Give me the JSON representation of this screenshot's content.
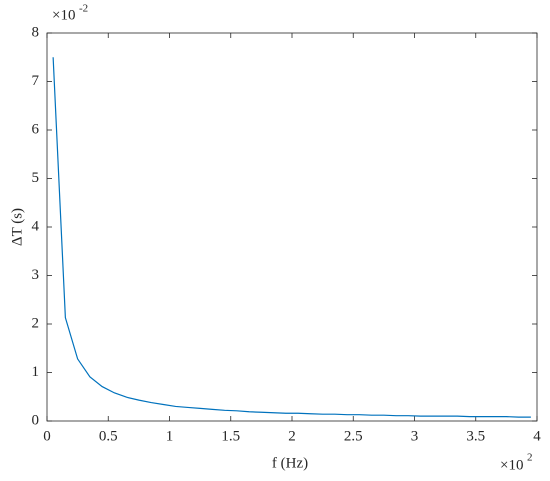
{
  "chart_data": {
    "type": "line",
    "xlabel": "f (Hz)",
    "ylabel": "ΔT (s)",
    "x_multiplier": "×10",
    "x_exponent": "2",
    "y_multiplier": "×10",
    "y_exponent": "-2",
    "x": [
      0.05,
      0.15,
      0.25,
      0.35,
      0.45,
      0.55,
      0.65,
      0.75,
      0.85,
      0.95,
      1.05,
      1.15,
      1.25,
      1.35,
      1.45,
      1.55,
      1.65,
      1.75,
      1.85,
      1.95,
      2.05,
      2.15,
      2.25,
      2.35,
      2.45,
      2.55,
      2.65,
      2.75,
      2.85,
      2.95,
      3.05,
      3.15,
      3.25,
      3.35,
      3.45,
      3.55,
      3.65,
      3.75,
      3.85,
      3.95
    ],
    "series": [
      {
        "name": "ΔT",
        "color": "#0072bd",
        "values": [
          7.5,
          2.13,
          1.28,
          0.91,
          0.71,
          0.58,
          0.49,
          0.43,
          0.38,
          0.34,
          0.3,
          0.28,
          0.26,
          0.24,
          0.22,
          0.21,
          0.19,
          0.18,
          0.17,
          0.16,
          0.16,
          0.15,
          0.14,
          0.14,
          0.13,
          0.13,
          0.12,
          0.12,
          0.11,
          0.11,
          0.1,
          0.1,
          0.1,
          0.1,
          0.09,
          0.09,
          0.09,
          0.09,
          0.08,
          0.08
        ]
      }
    ],
    "xlim": [
      0,
      4
    ],
    "ylim": [
      0,
      8
    ],
    "xticks": [
      0,
      0.5,
      1,
      1.5,
      2,
      2.5,
      3,
      3.5,
      4
    ],
    "yticks": [
      0,
      1,
      2,
      3,
      4,
      5,
      6,
      7,
      8
    ],
    "grid": false
  }
}
